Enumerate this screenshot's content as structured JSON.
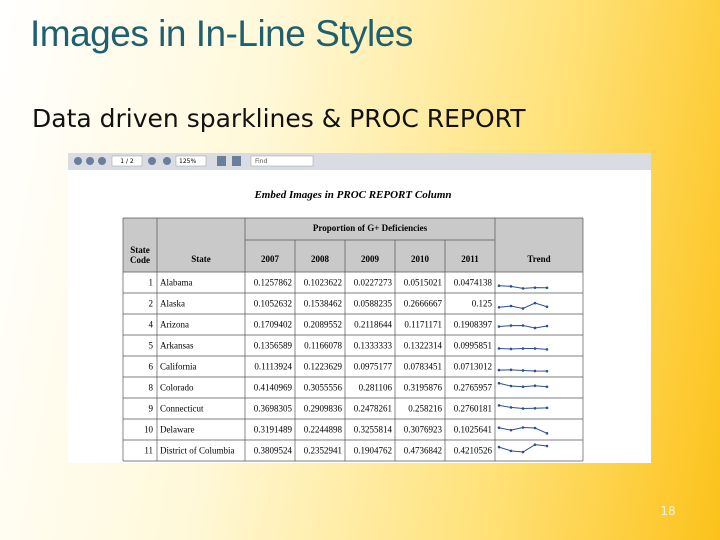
{
  "slide": {
    "title": "Images in In-Line Styles",
    "subtitle": "Data driven sparklines & PROC REPORT",
    "page_number": 18
  },
  "screenshot": {
    "toolbar": {
      "page": "1 / 2",
      "zoom": "125%",
      "find": "Find"
    },
    "report": {
      "title": "Embed Images in PROC REPORT Column",
      "group_header": "Proportion of G+ Deficiencies",
      "columns": [
        [
          "State",
          "Code"
        ],
        "State",
        "2007",
        "2008",
        "2009",
        "2010",
        "2011",
        "Trend"
      ],
      "rows": [
        [
          1,
          "Alabama",
          0.1257862,
          0.1023622,
          0.0227273,
          0.0515021,
          0.0474138
        ],
        [
          2,
          "Alaska",
          0.1052632,
          0.1538462,
          0.0588235,
          0.2666667,
          0.125
        ],
        [
          4,
          "Arizona",
          0.1709402,
          0.2089552,
          0.2118644,
          0.1171171,
          0.1908397
        ],
        [
          5,
          "Arkansas",
          0.1356589,
          0.1166078,
          0.1333333,
          0.1322314,
          0.0995851
        ],
        [
          6,
          "California",
          0.1113924,
          0.1223629,
          0.0975177,
          0.0783451,
          0.0713012
        ],
        [
          8,
          "Colorado",
          0.4140969,
          0.3055556,
          0.281106,
          0.3195876,
          0.2765957
        ],
        [
          9,
          "Connecticut",
          0.3698305,
          0.2909836,
          0.2478261,
          0.258216,
          0.2760181
        ],
        [
          10,
          "Delaware",
          0.3191489,
          0.2244898,
          0.3255814,
          0.3076923,
          0.1025641
        ],
        [
          11,
          "District of Columbia",
          0.3809524,
          0.2352941,
          0.1904762,
          0.4736842,
          0.4210526
        ]
      ]
    }
  }
}
